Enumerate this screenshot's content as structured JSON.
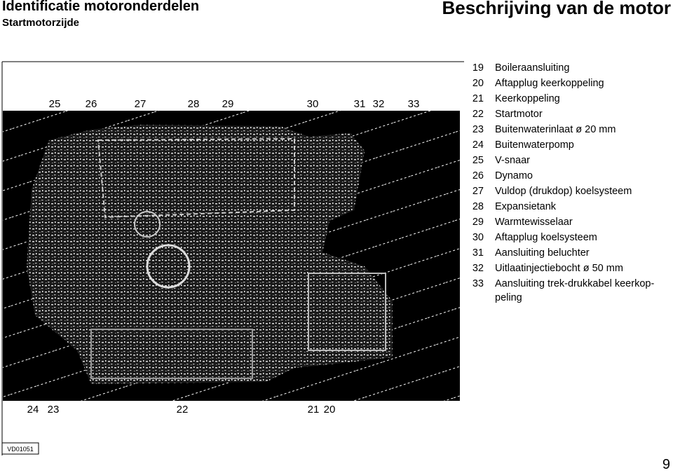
{
  "header": {
    "left_title": "Identificatie motoronderdelen",
    "left_subtitle": "Startmotorzijde",
    "right_title": "Beschrijving van de motor"
  },
  "figure": {
    "top_labels": [
      "25",
      "26",
      "27",
      "28",
      "29",
      "30",
      "31",
      "32",
      "33"
    ],
    "bottom_labels": [
      "24",
      "23",
      "22",
      "21",
      "20"
    ],
    "code": "VD01051"
  },
  "parts": [
    {
      "number": "19",
      "label": "Boileraansluiting"
    },
    {
      "number": "20",
      "label": "Aftapplug keerkoppeling"
    },
    {
      "number": "21",
      "label": "Keerkoppeling"
    },
    {
      "number": "22",
      "label": "Startmotor"
    },
    {
      "number": "23",
      "label": "Buitenwaterinlaat ø 20 mm"
    },
    {
      "number": "24",
      "label": "Buitenwaterpomp"
    },
    {
      "number": "25",
      "label": "V-snaar"
    },
    {
      "number": "26",
      "label": "Dynamo"
    },
    {
      "number": "27",
      "label": "Vuldop (drukdop) koelsysteem"
    },
    {
      "number": "28",
      "label": "Expansietank"
    },
    {
      "number": "29",
      "label": "Warmtewisselaar"
    },
    {
      "number": "30",
      "label": "Aftapplug koelsysteem"
    },
    {
      "number": "31",
      "label": "Aansluiting beluchter"
    },
    {
      "number": "32",
      "label": "Uitlaatinjectiebocht  ø 50 mm"
    },
    {
      "number": "33",
      "label": "Aansluiting trek-drukkabel keerkop-\npeling"
    }
  ],
  "page_number": "9"
}
